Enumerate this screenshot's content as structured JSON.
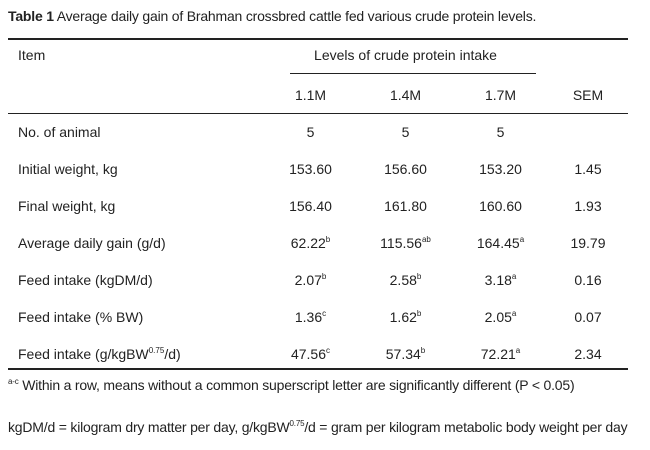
{
  "caption": {
    "label": "Table 1",
    "text": " Average daily gain of Brahman crossbred cattle fed various crude protein levels",
    "end": "."
  },
  "header": {
    "item": "Item",
    "group": "Levels of crude protein intake",
    "columns": [
      "1.1M",
      "1.4M",
      "1.7M",
      "SEM"
    ]
  },
  "rows": [
    {
      "label": "No. of animal",
      "values": [
        {
          "v": "5",
          "s": ""
        },
        {
          "v": "5",
          "s": ""
        },
        {
          "v": "5",
          "s": ""
        }
      ],
      "sem": ""
    },
    {
      "label": "Initial weight, kg",
      "values": [
        {
          "v": "153.60",
          "s": ""
        },
        {
          "v": "156.60",
          "s": ""
        },
        {
          "v": "153.20",
          "s": ""
        }
      ],
      "sem": "1.45"
    },
    {
      "label": "Final weight, kg",
      "values": [
        {
          "v": "156.40",
          "s": ""
        },
        {
          "v": "161.80",
          "s": ""
        },
        {
          "v": "160.60",
          "s": ""
        }
      ],
      "sem": "1.93"
    },
    {
      "label": "Average daily gain (g/d)",
      "values": [
        {
          "v": "62.22",
          "s": "b"
        },
        {
          "v": "115.56",
          "s": "ab"
        },
        {
          "v": "164.45",
          "s": "a"
        }
      ],
      "sem": "19.79"
    },
    {
      "label": "Feed intake (kgDM/d)",
      "values": [
        {
          "v": "2.07",
          "s": "b"
        },
        {
          "v": "2.58",
          "s": "b"
        },
        {
          "v": "3.18",
          "s": "a"
        }
      ],
      "sem": "0.16"
    },
    {
      "label": "Feed intake (% BW)",
      "values": [
        {
          "v": "1.36",
          "s": "c"
        },
        {
          "v": "1.62",
          "s": "b"
        },
        {
          "v": "2.05",
          "s": "a"
        }
      ],
      "sem": "0.07"
    },
    {
      "label": "Feed intake (g/kgBW",
      "label_sup": "0.75",
      "label_end": "/d)",
      "values": [
        {
          "v": "47.56",
          "s": "c"
        },
        {
          "v": "57.34",
          "s": "b"
        },
        {
          "v": "72.21",
          "s": "a"
        }
      ],
      "sem": "2.34"
    }
  ],
  "footnotes": {
    "sig_sup": "a-c",
    "sig_text": " Within a row, means without a common superscript letter are significantly different (P < 0.05)",
    "abbr_a": "kgDM/d = kilogram dry matter per day,  g/kgBW",
    "abbr_sup": "0.75",
    "abbr_b": "/d = gram per kilogram metabolic body weight per day"
  }
}
